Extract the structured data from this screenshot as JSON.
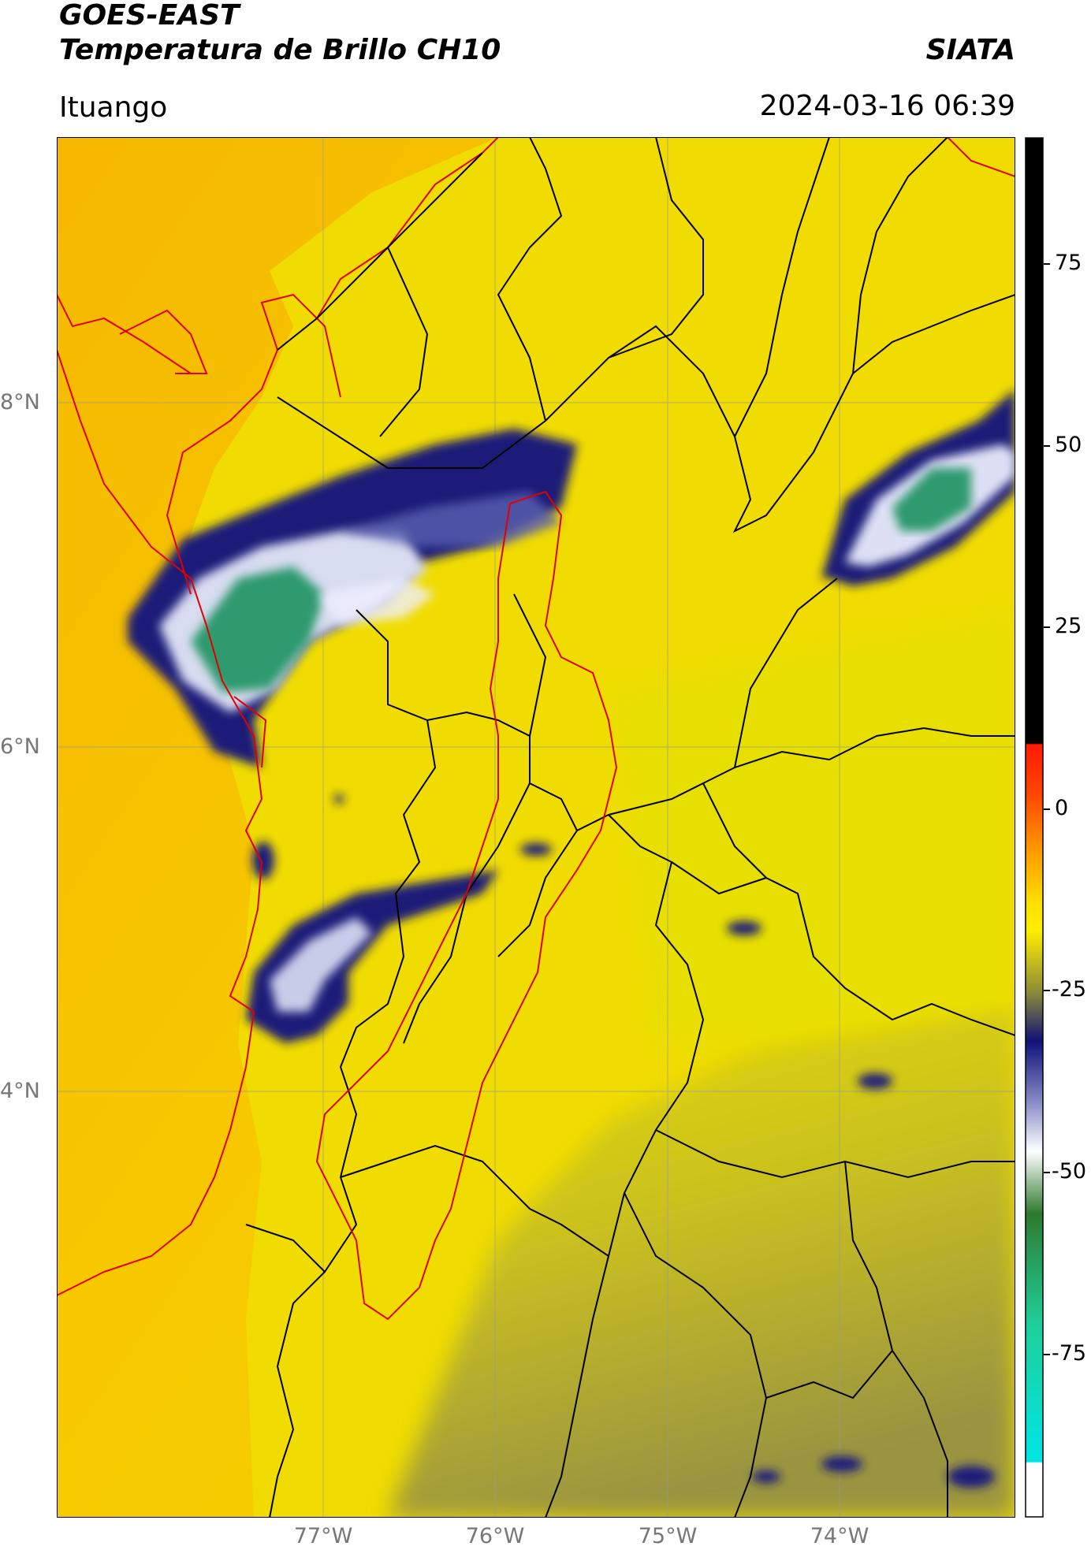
{
  "header": {
    "satellite": "GOES-EAST",
    "product": "Temperatura de Brillo CH10",
    "organization": "SIATA",
    "region": "Ituango",
    "timestamp": "2024-03-16 06:39"
  },
  "map": {
    "lat_labels": [
      "8°N",
      "6°N",
      "4°N"
    ],
    "lon_labels": [
      "77°W",
      "76°W",
      "75°W",
      "74°W"
    ],
    "colors": {
      "background": "#f7c400",
      "land": "#f2e200",
      "deep_cloud": "#1a1a7a",
      "cold_core": "#2e9a6a",
      "borders": "#000000",
      "coast": "#e00000"
    }
  },
  "colorbar": {
    "tick_labels": [
      "75",
      "50",
      "25",
      "0",
      "-25",
      "-50",
      "-75"
    ],
    "colors": {
      "top": "#000000",
      "warm_red": "#ff1a00",
      "orange": "#ff9a00",
      "yellow": "#ffee00",
      "olive": "#8a8a3a",
      "navy": "#111177",
      "white": "#ffffff",
      "green": "#2e7a2e",
      "teal": "#1fcf9a",
      "cyan": "#00e5e5"
    }
  }
}
